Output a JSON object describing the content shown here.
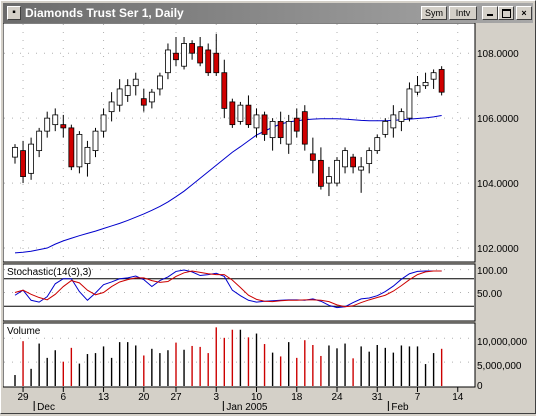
{
  "window": {
    "title": "Diamonds Trust Ser 1, Daily",
    "buttons": {
      "sym": "Sym",
      "intv": "Intv",
      "close": "×"
    }
  },
  "colors": {
    "up": "#ffffff",
    "down": "#d00000",
    "ma": "#0000cc",
    "stoch_k": "#0000cc",
    "stoch_d": "#cc0000",
    "vol_up": "#000000",
    "vol_down": "#cc0000"
  },
  "icons": {
    "window_icon": "chart-window-icon",
    "minimize": "minimize-icon",
    "maximize": "maximize-icon",
    "close": "close-icon"
  },
  "chart_data": [
    {
      "type": "candlestick",
      "title": "",
      "price_labels": [
        "108.0000",
        "106.0000",
        "104.0000",
        "102.0000"
      ],
      "ylim": [
        101.6,
        108.9
      ],
      "x_ticks": [
        "29",
        "6",
        "13",
        "20",
        "27",
        "3",
        "10",
        "18",
        "24",
        "31",
        "7",
        "14"
      ],
      "x_tick_index": [
        1,
        6,
        11,
        16,
        20,
        25,
        30,
        35,
        40,
        45,
        50,
        55
      ],
      "month_labels": [
        {
          "label": "Dec",
          "index": 3.5
        },
        {
          "label": "Jan 2005",
          "index": 27
        },
        {
          "label": "Feb",
          "index": 47.5
        }
      ],
      "ohlc": [
        [
          104.8,
          105.2,
          104.6,
          105.1
        ],
        [
          105.0,
          105.3,
          104.0,
          104.2
        ],
        [
          104.3,
          105.4,
          104.1,
          105.2
        ],
        [
          105.0,
          105.7,
          104.8,
          105.6
        ],
        [
          105.6,
          106.2,
          105.4,
          106.0
        ],
        [
          105.8,
          106.3,
          105.6,
          106.1
        ],
        [
          105.8,
          106.1,
          105.4,
          105.7
        ],
        [
          105.7,
          105.8,
          104.4,
          104.5
        ],
        [
          104.5,
          105.6,
          104.3,
          105.5
        ],
        [
          104.6,
          105.3,
          104.2,
          105.1
        ],
        [
          105.0,
          105.7,
          104.8,
          105.6
        ],
        [
          105.6,
          106.3,
          105.4,
          106.1
        ],
        [
          106.2,
          106.8,
          105.9,
          106.5
        ],
        [
          106.4,
          107.2,
          106.2,
          106.9
        ],
        [
          106.7,
          107.2,
          106.5,
          107.0
        ],
        [
          107.0,
          107.4,
          106.7,
          107.2
        ],
        [
          106.6,
          106.9,
          106.2,
          106.4
        ],
        [
          106.5,
          106.9,
          106.3,
          106.8
        ],
        [
          106.9,
          107.4,
          106.7,
          107.3
        ],
        [
          107.4,
          108.3,
          107.2,
          108.1
        ],
        [
          108.0,
          108.5,
          107.6,
          107.8
        ],
        [
          107.6,
          108.5,
          107.5,
          108.3
        ],
        [
          108.3,
          108.4,
          107.8,
          108.0
        ],
        [
          108.2,
          108.5,
          107.6,
          107.7
        ],
        [
          108.1,
          108.3,
          107.3,
          107.4
        ],
        [
          108.0,
          108.6,
          107.3,
          107.4
        ],
        [
          107.4,
          107.8,
          106.0,
          106.3
        ],
        [
          106.5,
          106.6,
          105.7,
          105.8
        ],
        [
          105.9,
          106.5,
          105.8,
          106.4
        ],
        [
          106.4,
          106.7,
          105.7,
          105.8
        ],
        [
          105.7,
          106.3,
          105.4,
          106.1
        ],
        [
          106.1,
          106.2,
          105.3,
          105.5
        ],
        [
          105.4,
          106.0,
          105.0,
          105.9
        ],
        [
          105.9,
          106.2,
          105.2,
          105.4
        ],
        [
          105.2,
          106.1,
          104.9,
          105.9
        ],
        [
          106.0,
          106.3,
          105.4,
          105.6
        ],
        [
          106.2,
          106.4,
          105.0,
          105.2
        ],
        [
          104.9,
          105.4,
          104.3,
          104.7
        ],
        [
          104.7,
          105.1,
          103.8,
          103.9
        ],
        [
          104.0,
          104.5,
          103.6,
          104.2
        ],
        [
          104.0,
          104.8,
          103.9,
          104.7
        ],
        [
          104.5,
          105.1,
          104.3,
          105.0
        ],
        [
          104.8,
          104.9,
          104.3,
          104.5
        ],
        [
          104.4,
          104.8,
          103.7,
          104.5
        ],
        [
          104.6,
          105.1,
          104.3,
          105.0
        ],
        [
          105.0,
          105.5,
          104.9,
          105.4
        ],
        [
          105.5,
          106.0,
          105.4,
          105.9
        ],
        [
          105.7,
          106.4,
          105.4,
          106.1
        ],
        [
          105.9,
          106.3,
          105.6,
          106.2
        ],
        [
          106.0,
          107.1,
          105.9,
          106.9
        ],
        [
          106.8,
          107.3,
          106.7,
          107.0
        ],
        [
          107.0,
          107.4,
          106.9,
          107.1
        ],
        [
          107.2,
          107.5,
          106.9,
          107.4
        ],
        [
          107.5,
          107.6,
          106.7,
          106.8
        ]
      ],
      "moving_average": [
        101.85,
        101.87,
        101.9,
        101.95,
        102.0,
        102.12,
        102.22,
        102.3,
        102.38,
        102.45,
        102.52,
        102.6,
        102.68,
        102.76,
        102.85,
        102.95,
        103.05,
        103.16,
        103.28,
        103.42,
        103.58,
        103.75,
        103.95,
        104.15,
        104.35,
        104.55,
        104.75,
        104.95,
        105.12,
        105.3,
        105.48,
        105.6,
        105.72,
        105.82,
        105.88,
        105.92,
        105.95,
        105.97,
        105.98,
        105.98,
        105.98,
        105.97,
        105.95,
        105.93,
        105.92,
        105.92,
        105.92,
        105.93,
        105.95,
        105.97,
        105.99,
        106.01,
        106.04,
        106.08
      ]
    },
    {
      "type": "line",
      "title": "Stochastic(14(3),3)",
      "tick_labels": [
        "100.00",
        "50.00"
      ],
      "reference_lines": [
        80,
        20
      ],
      "ylim": [
        -10,
        110
      ],
      "series": [
        {
          "values": [
            44,
            55,
            33,
            29,
            41,
            69,
            80,
            80,
            52,
            33,
            49,
            67,
            73,
            80,
            82,
            86,
            78,
            63,
            76,
            84,
            96,
            99,
            95,
            87,
            89,
            92,
            85,
            55,
            43,
            33,
            29,
            31,
            32,
            33,
            34,
            34,
            33,
            36,
            31,
            22,
            17,
            19,
            28,
            36,
            38,
            43,
            52,
            64,
            79,
            91,
            96,
            97,
            97,
            97
          ]
        },
        {
          "values": [
            50,
            55,
            46,
            39,
            34,
            46,
            63,
            76,
            71,
            55,
            45,
            50,
            63,
            73,
            78,
            82,
            82,
            76,
            72,
            74,
            85,
            93,
            97,
            94,
            91,
            89,
            89,
            77,
            61,
            44,
            35,
            31,
            30,
            32,
            33,
            33,
            34,
            34,
            33,
            30,
            23,
            19,
            21,
            28,
            34,
            39,
            44,
            53,
            65,
            78,
            89,
            95,
            97,
            97
          ]
        }
      ]
    },
    {
      "type": "bar",
      "title": "Volume",
      "tick_labels": [
        "10,000,000",
        "5,000,000",
        "0"
      ],
      "ylim": [
        0,
        13000000
      ],
      "values": [
        2.3,
        9.4,
        3.6,
        8.9,
        5.9,
        7.5,
        5.1,
        8.0,
        4.7,
        6.7,
        6.9,
        8.3,
        5.9,
        9.2,
        9.2,
        8.5,
        6.4,
        7.8,
        6.9,
        7.5,
        9.1,
        7.6,
        8.4,
        8.2,
        6.9,
        12.3,
        10.1,
        11.8,
        11.8,
        10.2,
        11.0,
        8.8,
        7.0,
        6.2,
        9.2,
        5.9,
        9.6,
        8.6,
        6.3,
        8.5,
        7.9,
        8.9,
        5.8,
        8.3,
        7.2,
        8.6,
        8.0,
        7.0,
        8.5,
        8.3,
        8.3,
        4.6,
        6.9,
        7.8
      ],
      "value_scale": 1000000
    }
  ]
}
